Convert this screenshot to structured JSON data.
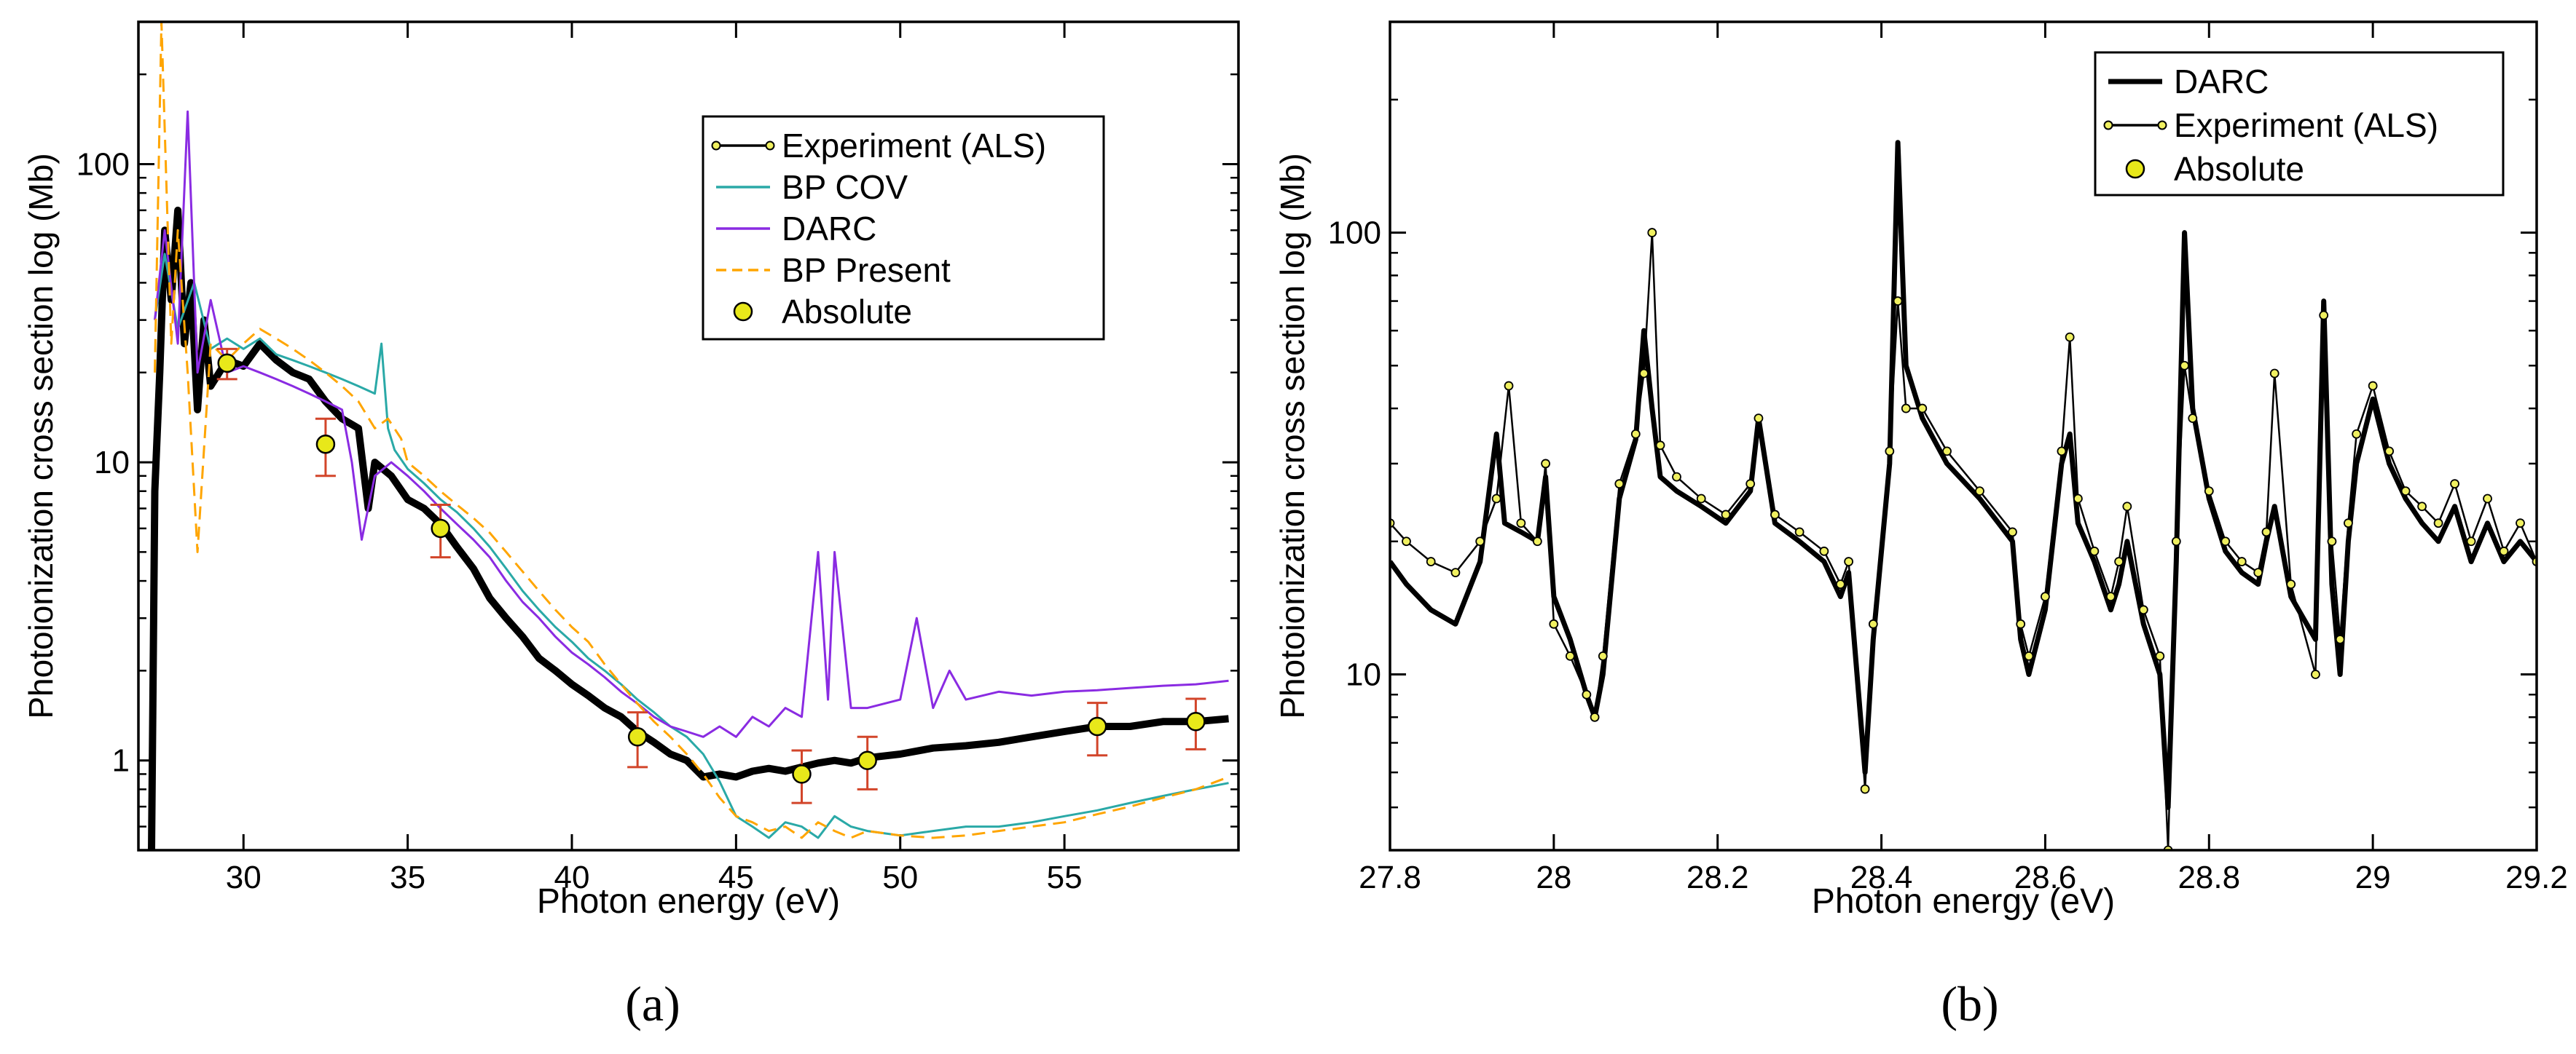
{
  "chart_data": [
    {
      "type": "line",
      "panel_label": "(a)",
      "xlabel": "Photon energy (eV)",
      "ylabel": "Photoionization cross section log (Mb)",
      "xlim": [
        26.8,
        60.3
      ],
      "ylim": [
        0.5,
        300
      ],
      "yscale": "log",
      "x_ticks": [
        30,
        35,
        40,
        45,
        50,
        55
      ],
      "x_tick_labels": [
        "30",
        "35",
        "40",
        "45",
        "50",
        "55"
      ],
      "y_ticks": [
        1,
        10,
        100
      ],
      "y_tick_labels": [
        "1",
        "10",
        "100"
      ],
      "legend": {
        "position": "top-right",
        "entries": [
          {
            "label": "Experiment (ALS)",
            "color": "#000000",
            "style": "line-with-markers"
          },
          {
            "label": "BP COV",
            "color": "#2aa9a7",
            "style": "line"
          },
          {
            "label": "DARC",
            "color": "#8a2be2",
            "style": "line"
          },
          {
            "label": "BP Present",
            "color": "#ffa500",
            "style": "dashed"
          },
          {
            "label": "Absolute",
            "color": "#e8e81a",
            "style": "marker"
          }
        ]
      },
      "series": [
        {
          "name": "Experiment (ALS)",
          "color": "#000000",
          "x": [
            27.2,
            27.3,
            27.45,
            27.6,
            27.8,
            28.0,
            28.2,
            28.4,
            28.6,
            28.8,
            29.0,
            29.5,
            30.0,
            30.5,
            31.0,
            31.5,
            32.0,
            32.5,
            33.0,
            33.5,
            33.8,
            34.0,
            34.5,
            35.0,
            35.5,
            36.0,
            36.5,
            37.0,
            37.5,
            38.0,
            38.5,
            39.0,
            39.5,
            40.0,
            40.5,
            41.0,
            41.5,
            42.0,
            42.5,
            43.0,
            43.5,
            44.0,
            44.5,
            45.0,
            45.5,
            46.0,
            46.5,
            47.0,
            47.5,
            48.0,
            48.5,
            49.0,
            50.0,
            51.0,
            52.0,
            53.0,
            54.0,
            55.0,
            56.0,
            57.0,
            58.0,
            59.0,
            60.0
          ],
          "y": [
            0.5,
            8,
            20,
            60,
            35,
            70,
            25,
            40,
            15,
            30,
            18,
            22,
            21,
            25,
            22,
            20,
            19,
            16,
            14,
            13,
            7,
            10,
            9,
            7.5,
            7,
            6.2,
            5.2,
            4.4,
            3.5,
            3.0,
            2.6,
            2.2,
            2.0,
            1.8,
            1.65,
            1.5,
            1.4,
            1.25,
            1.15,
            1.05,
            1.0,
            0.88,
            0.9,
            0.88,
            0.92,
            0.94,
            0.92,
            0.95,
            0.98,
            1.0,
            0.98,
            1.02,
            1.05,
            1.1,
            1.12,
            1.15,
            1.2,
            1.25,
            1.3,
            1.3,
            1.35,
            1.35,
            1.38
          ]
        },
        {
          "name": "BP COV",
          "color": "#2aa9a7",
          "x": [
            27.3,
            27.6,
            28.0,
            28.5,
            29.0,
            29.5,
            30.0,
            30.5,
            31.0,
            31.5,
            32.0,
            32.5,
            33.0,
            33.5,
            34.0,
            34.2,
            34.4,
            34.6,
            35.0,
            35.5,
            36.0,
            36.5,
            37.0,
            37.5,
            38.0,
            38.5,
            39.0,
            39.5,
            40.0,
            40.5,
            41.0,
            41.5,
            42.0,
            42.5,
            43.0,
            43.5,
            44.0,
            44.5,
            45.0,
            45.5,
            46.0,
            46.5,
            47.0,
            47.5,
            48.0,
            48.5,
            49.0,
            50.0,
            51.0,
            52.0,
            53.0,
            54.0,
            55.0,
            56.0,
            57.0,
            58.0,
            59.0,
            60.0
          ],
          "y": [
            30,
            50,
            28,
            40,
            24,
            26,
            24,
            26,
            23,
            22,
            21,
            20,
            19,
            18,
            17,
            25,
            13,
            11,
            9.5,
            8.5,
            7.5,
            6.8,
            6.0,
            5.2,
            4.4,
            3.7,
            3.2,
            2.8,
            2.5,
            2.2,
            2.0,
            1.8,
            1.6,
            1.45,
            1.3,
            1.2,
            1.05,
            0.85,
            0.65,
            0.6,
            0.55,
            0.62,
            0.6,
            0.55,
            0.65,
            0.6,
            0.58,
            0.56,
            0.58,
            0.6,
            0.6,
            0.62,
            0.65,
            0.68,
            0.72,
            0.76,
            0.8,
            0.84
          ]
        },
        {
          "name": "DARC",
          "color": "#8a2be2",
          "x": [
            27.3,
            27.6,
            28.0,
            28.3,
            28.6,
            29.0,
            29.5,
            30.0,
            30.5,
            31.0,
            31.5,
            32.0,
            32.5,
            33.0,
            33.3,
            33.6,
            34.0,
            34.5,
            35.0,
            35.5,
            36.0,
            36.5,
            37.0,
            37.5,
            38.0,
            38.5,
            39.0,
            39.5,
            40.0,
            40.5,
            41.0,
            41.5,
            42.0,
            42.5,
            43.0,
            43.5,
            44.0,
            44.5,
            45.0,
            45.5,
            46.0,
            46.5,
            47.0,
            47.5,
            47.8,
            48.0,
            48.5,
            49.0,
            50.0,
            50.5,
            51.0,
            51.5,
            52.0,
            53.0,
            54.0,
            55.0,
            56.0,
            57.0,
            58.0,
            59.0,
            60.0
          ],
          "y": [
            30,
            60,
            25,
            150,
            20,
            35,
            20,
            21,
            20,
            19,
            18,
            17,
            16,
            15,
            10,
            5.5,
            9,
            10,
            9,
            8,
            7,
            6.2,
            5.5,
            4.8,
            4,
            3.4,
            3,
            2.6,
            2.3,
            2.1,
            1.9,
            1.7,
            1.55,
            1.4,
            1.3,
            1.25,
            1.2,
            1.3,
            1.2,
            1.4,
            1.3,
            1.5,
            1.4,
            5.0,
            1.6,
            5.0,
            1.5,
            1.5,
            1.6,
            3.0,
            1.5,
            2.0,
            1.6,
            1.7,
            1.65,
            1.7,
            1.72,
            1.75,
            1.78,
            1.8,
            1.85
          ]
        },
        {
          "name": "BP Present",
          "color": "#ffa500",
          "dashed": true,
          "x": [
            27.3,
            27.5,
            27.8,
            28.0,
            28.3,
            28.6,
            29.0,
            29.5,
            30.0,
            30.5,
            31.0,
            31.5,
            32.0,
            32.5,
            33.0,
            33.5,
            34.0,
            34.4,
            34.8,
            35.0,
            35.5,
            36.0,
            36.5,
            37.0,
            37.5,
            38.0,
            38.5,
            39.0,
            39.5,
            40.0,
            40.5,
            41.0,
            41.5,
            42.0,
            42.5,
            43.0,
            43.5,
            44.0,
            44.5,
            45.0,
            45.5,
            46.0,
            46.5,
            47.0,
            47.5,
            48.0,
            48.5,
            49.0,
            50.0,
            51.0,
            52.0,
            53.0,
            54.0,
            55.0,
            56.0,
            57.0,
            58.0,
            59.0,
            60.0
          ],
          "y": [
            20,
            300,
            25,
            60,
            20,
            5,
            25,
            22,
            25,
            28,
            26,
            24,
            22,
            20,
            18,
            16,
            13,
            14,
            12,
            10,
            9,
            8,
            7.2,
            6.5,
            5.8,
            5,
            4.3,
            3.7,
            3.2,
            2.8,
            2.5,
            2.1,
            1.8,
            1.55,
            1.35,
            1.2,
            1.05,
            0.9,
            0.75,
            0.65,
            0.62,
            0.58,
            0.6,
            0.55,
            0.62,
            0.58,
            0.55,
            0.58,
            0.56,
            0.55,
            0.56,
            0.58,
            0.6,
            0.62,
            0.66,
            0.7,
            0.75,
            0.8,
            0.88
          ]
        }
      ],
      "absolute_points": {
        "name": "Absolute",
        "x": [
          29.5,
          32.5,
          36.0,
          42.0,
          47.0,
          49.0,
          56.0,
          59.0
        ],
        "y": [
          21.5,
          11.5,
          6.0,
          1.2,
          0.9,
          1.0,
          1.3,
          1.35
        ],
        "err": [
          2.5,
          2.5,
          1.2,
          0.25,
          0.18,
          0.2,
          0.26,
          0.26
        ]
      }
    },
    {
      "type": "line",
      "panel_label": "(b)",
      "xlabel": "Photon energy (eV)",
      "ylabel": "Photoionization cross section log (Mb)",
      "xlim": [
        27.8,
        29.2
      ],
      "ylim": [
        4,
        300
      ],
      "yscale": "log",
      "x_ticks": [
        27.8,
        28.0,
        28.2,
        28.4,
        28.6,
        28.8,
        29.0,
        29.2
      ],
      "x_tick_labels": [
        "27.8",
        "28",
        "28.2",
        "28.4",
        "28.6",
        "28.8",
        "29",
        "29.2"
      ],
      "y_ticks": [
        10,
        100
      ],
      "y_tick_labels": [
        "10",
        "100"
      ],
      "legend": {
        "position": "top-right",
        "entries": [
          {
            "label": "DARC",
            "color": "#000000",
            "style": "thick-line"
          },
          {
            "label": "Experiment (ALS)",
            "color": "#000000",
            "style": "line-with-markers"
          },
          {
            "label": "Absolute",
            "color": "#e8e81a",
            "style": "marker"
          }
        ]
      },
      "series": [
        {
          "name": "DARC",
          "color": "#000000",
          "x": [
            27.8,
            27.82,
            27.85,
            27.88,
            27.91,
            27.93,
            27.94,
            27.96,
            27.98,
            27.99,
            28.0,
            28.02,
            28.04,
            28.05,
            28.06,
            28.08,
            28.1,
            28.11,
            28.12,
            28.13,
            28.15,
            28.18,
            28.21,
            28.24,
            28.25,
            28.27,
            28.3,
            28.33,
            28.35,
            28.36,
            28.38,
            28.39,
            28.41,
            28.42,
            28.43,
            28.45,
            28.48,
            28.52,
            28.56,
            28.57,
            28.58,
            28.6,
            28.62,
            28.63,
            28.64,
            28.66,
            28.68,
            28.69,
            28.7,
            28.72,
            28.74,
            28.75,
            28.76,
            28.77,
            28.78,
            28.8,
            28.82,
            28.84,
            28.86,
            28.87,
            28.88,
            28.9,
            28.93,
            28.94,
            28.95,
            28.96,
            28.97,
            28.98,
            29.0,
            29.02,
            29.04,
            29.06,
            29.08,
            29.1,
            29.12,
            29.14,
            29.16,
            29.18,
            29.2
          ],
          "y": [
            18,
            16,
            14,
            13,
            18,
            35,
            22,
            21,
            20,
            28,
            15,
            12,
            9,
            8,
            10,
            25,
            34,
            60,
            40,
            28,
            26,
            24,
            22,
            26,
            38,
            22,
            20,
            18,
            15,
            17,
            6,
            12,
            30,
            160,
            50,
            38,
            30,
            25,
            20,
            12,
            10,
            14,
            30,
            35,
            22,
            18,
            14,
            16,
            20,
            13,
            10,
            5,
            18,
            100,
            40,
            25,
            19,
            17,
            16,
            20,
            24,
            15,
            12,
            70,
            16,
            10,
            20,
            30,
            42,
            30,
            25,
            22,
            20,
            24,
            18,
            22,
            18,
            20,
            18
          ]
        },
        {
          "name": "Experiment (ALS)",
          "color": "#000000",
          "x": [
            27.8,
            27.82,
            27.85,
            27.88,
            27.91,
            27.93,
            27.945,
            27.96,
            27.98,
            27.99,
            28.0,
            28.02,
            28.04,
            28.05,
            28.06,
            28.08,
            28.1,
            28.11,
            28.12,
            28.13,
            28.15,
            28.18,
            28.21,
            28.24,
            28.25,
            28.27,
            28.3,
            28.33,
            28.35,
            28.36,
            28.38,
            28.39,
            28.41,
            28.42,
            28.43,
            28.45,
            28.48,
            28.52,
            28.56,
            28.57,
            28.58,
            28.6,
            28.62,
            28.63,
            28.64,
            28.66,
            28.68,
            28.69,
            28.7,
            28.72,
            28.74,
            28.75,
            28.76,
            28.77,
            28.78,
            28.8,
            28.82,
            28.84,
            28.86,
            28.87,
            28.88,
            28.9,
            28.93,
            28.94,
            28.95,
            28.96,
            28.97,
            28.98,
            29.0,
            29.02,
            29.04,
            29.06,
            29.08,
            29.1,
            29.12,
            29.14,
            29.16,
            29.18,
            29.2
          ],
          "y": [
            22,
            20,
            18,
            17,
            20,
            25,
            45,
            22,
            20,
            30,
            13,
            11,
            9,
            8,
            11,
            27,
            35,
            48,
            100,
            33,
            28,
            25,
            23,
            27,
            38,
            23,
            21,
            19,
            16,
            18,
            5.5,
            13,
            32,
            70,
            40,
            40,
            32,
            26,
            21,
            13,
            11,
            15,
            32,
            58,
            25,
            19,
            15,
            18,
            24,
            14,
            11,
            4,
            20,
            50,
            38,
            26,
            20,
            18,
            17,
            21,
            48,
            16,
            10,
            65,
            20,
            12,
            22,
            35,
            45,
            32,
            26,
            24,
            22,
            27,
            20,
            25,
            19,
            22,
            18
          ]
        }
      ]
    }
  ]
}
